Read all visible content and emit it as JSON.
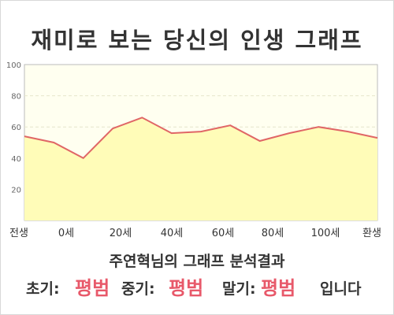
{
  "title": "재미로 보는 당신의 인생 그래프",
  "subtitle": "주연혁님의 그래프 분석결과",
  "result": {
    "early_label": "초기:",
    "early_value": "평범",
    "mid_label": "중기:",
    "mid_value": "평범",
    "late_label": "말기:",
    "late_value": "평범",
    "suffix": "입니다"
  },
  "colors": {
    "line": "#e06666",
    "fill": "#fffcb8",
    "plot_bg": "#fffff0",
    "grid": "#e6e6cc"
  },
  "chart_data": {
    "type": "area",
    "title": "재미로 보는 당신의 인생 그래프",
    "xlabel": "",
    "ylabel": "",
    "ylim": [
      0,
      100
    ],
    "yticks": [
      20,
      40,
      60,
      80,
      100
    ],
    "x_tick_labels": [
      "전생",
      "0세",
      "20세",
      "40세",
      "60세",
      "80세",
      "100세",
      "환생"
    ],
    "grid": true,
    "legend": "none",
    "series": [
      {
        "values": [
          54,
          50,
          40,
          59,
          66,
          56,
          57,
          61,
          51,
          56,
          60,
          57,
          53
        ]
      }
    ]
  }
}
